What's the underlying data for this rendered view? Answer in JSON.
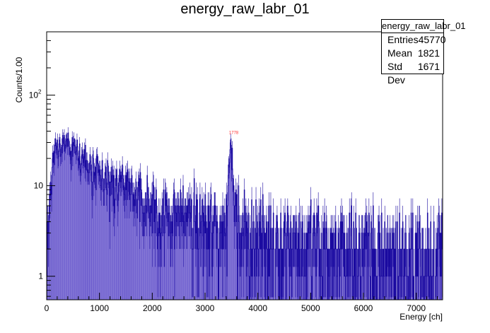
{
  "chart_data": {
    "type": "histogram",
    "title": "energy_raw_labr_01",
    "xlabel": "Energy [ch]",
    "ylabel": "Counts/1.00",
    "xlim": [
      0,
      7500
    ],
    "ylim": [
      0.55,
      500
    ],
    "yscale": "log",
    "x_ticks": [
      0,
      1000,
      2000,
      3000,
      4000,
      5000,
      6000,
      7000
    ],
    "y_ticks": [
      {
        "value": 1,
        "label": "1"
      },
      {
        "value": 10,
        "label": "10"
      },
      {
        "value": 100,
        "label": "10",
        "sup": "2"
      }
    ],
    "fill_color": "#6a5acd",
    "line_color": "#1a0aa0",
    "bins": 750,
    "envelope": [
      {
        "x": 0,
        "y": 0.8
      },
      {
        "x": 50,
        "y": 5
      },
      {
        "x": 100,
        "y": 15
      },
      {
        "x": 150,
        "y": 24
      },
      {
        "x": 250,
        "y": 30
      },
      {
        "x": 400,
        "y": 30
      },
      {
        "x": 550,
        "y": 27
      },
      {
        "x": 700,
        "y": 20
      },
      {
        "x": 900,
        "y": 16
      },
      {
        "x": 1100,
        "y": 12
      },
      {
        "x": 1400,
        "y": 10
      },
      {
        "x": 1700,
        "y": 8
      },
      {
        "x": 2000,
        "y": 6
      },
      {
        "x": 2500,
        "y": 5
      },
      {
        "x": 3000,
        "y": 4
      },
      {
        "x": 3350,
        "y": 3.5
      },
      {
        "x": 3420,
        "y": 6
      },
      {
        "x": 3460,
        "y": 22
      },
      {
        "x": 3490,
        "y": 33
      },
      {
        "x": 3520,
        "y": 22
      },
      {
        "x": 3560,
        "y": 5
      },
      {
        "x": 3700,
        "y": 3.5
      },
      {
        "x": 4000,
        "y": 3
      },
      {
        "x": 5000,
        "y": 2.5
      },
      {
        "x": 6000,
        "y": 2
      },
      {
        "x": 7500,
        "y": 1.8
      }
    ],
    "peak_annotation": {
      "x": 3490,
      "y": 36,
      "label": "1778",
      "color": "#ff3333"
    },
    "stats": {
      "name": "energy_raw_labr_01",
      "entries_label": "Entries",
      "entries": "45770",
      "mean_label": "Mean",
      "mean": "1821",
      "stddev_label": "Std Dev",
      "stddev": "1671"
    }
  }
}
